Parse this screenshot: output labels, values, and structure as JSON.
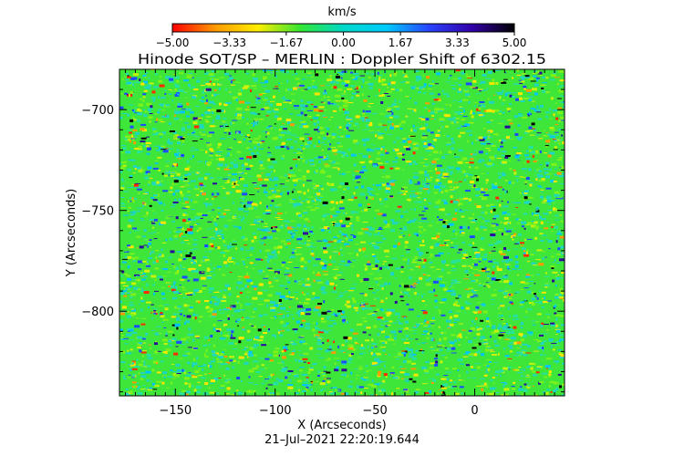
{
  "chart_data": {
    "type": "heatmap",
    "title": "Hinode SOT/SP – MERLIN : Doppler Shift of 6302.15",
    "colorbar": {
      "label": "km/s",
      "min": -5.0,
      "max": 5.0,
      "ticks": [
        -5.0,
        -3.33,
        -1.67,
        0.0,
        1.67,
        3.33,
        5.0
      ],
      "tick_labels": [
        "−5.00",
        "−3.33",
        "−1.67",
        "0.00",
        "1.67",
        "3.33",
        "5.00"
      ],
      "colormap_stops": [
        "#ff0000",
        "#ff9900",
        "#ffee00",
        "#33e633",
        "#00d9c8",
        "#00ccff",
        "#2a44ff",
        "#3300aa",
        "#000000"
      ]
    },
    "xlabel": "X (Arcseconds)",
    "ylabel": "Y (Arcseconds)",
    "xlim": [
      -178,
      45
    ],
    "ylim": [
      -842,
      -680
    ],
    "xticks": [
      -150,
      -100,
      -50,
      0
    ],
    "xtick_labels": [
      "−150",
      "−100",
      "−50",
      "0"
    ],
    "yticks": [
      -700,
      -750,
      -800
    ],
    "ytick_labels": [
      "−700",
      "−750",
      "−800"
    ],
    "field_description": "Dense granular Doppler velocity map, mostly near 0 km/s (green/cyan) with scattered red/yellow (negative) and blue/black (positive) speckles",
    "footer_timestamp": "21–Jul–2021  22:20:19.644"
  }
}
